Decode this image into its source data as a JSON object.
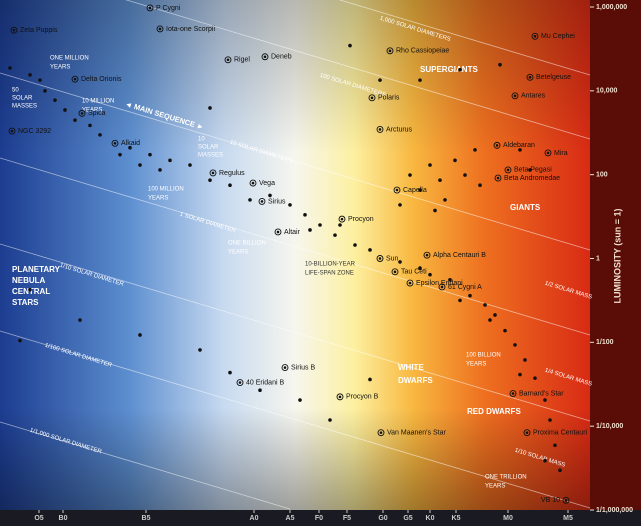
{
  "chart_data": {
    "type": "scatter",
    "ylabel": "LUMINOSITY (sun = 1)",
    "log_y": true,
    "xlim": [
      0,
      590
    ],
    "ylim": [
      1e-06,
      1000000
    ],
    "xticks": [
      {
        "value": 39,
        "label": "O5"
      },
      {
        "value": 63,
        "label": "B0"
      },
      {
        "value": 146,
        "label": "B5"
      },
      {
        "value": 254,
        "label": "A0"
      },
      {
        "value": 290,
        "label": "A5"
      },
      {
        "value": 319,
        "label": "F0"
      },
      {
        "value": 347,
        "label": "F5"
      },
      {
        "value": 383,
        "label": "G0"
      },
      {
        "value": 408,
        "label": "G5"
      },
      {
        "value": 430,
        "label": "K0"
      },
      {
        "value": 456,
        "label": "K5"
      },
      {
        "value": 508,
        "label": "M0"
      },
      {
        "value": 568,
        "label": "M5"
      }
    ],
    "yticks": [
      {
        "value": 1000000,
        "label": "1,000,000"
      },
      {
        "value": 10000,
        "label": "10,000"
      },
      100,
      1,
      {
        "value": 0.01,
        "label": "1/100"
      },
      {
        "value": 0.0001,
        "label": "1/10,000"
      },
      {
        "value": 1e-06,
        "label": "1/1,000,000"
      }
    ],
    "color": "#111111",
    "stars": {
      "labels": [
        "Zeta Puppis",
        "P Cygni",
        "Iota-one Scorpii",
        "Rigel",
        "Deneb",
        "Rho Cassiopeiae",
        "Mu Cephei",
        "Delta Orionis",
        "Betelgeuse",
        "Antares",
        "Polaris",
        "NGC 3292",
        "Spica",
        "Alkaid",
        "Regulus",
        "Vega",
        "Arcturus",
        "Aldebaran",
        "Beta Pegasi",
        "Mira",
        "Beta Andromedae",
        "Capella",
        "Sirius",
        "Procyon",
        "Altair",
        "Sun",
        "Alpha Centauri B",
        "Tau Ceti",
        "Epsilon Eridani",
        "61 Cygni A",
        "Sirius B",
        "40 Eridani B",
        "Procyon B",
        "Van Maanen's Star",
        "Barnard's Star",
        "Proxima Centauri",
        "VB 10"
      ],
      "x": [
        14,
        150,
        160,
        228,
        265,
        390,
        535,
        75,
        530,
        515,
        372,
        12,
        82,
        115,
        213,
        253,
        380,
        497,
        508,
        548,
        498,
        397,
        262,
        342,
        278,
        380,
        427,
        395,
        410,
        442,
        285,
        240,
        340,
        381,
        513,
        527,
        566
      ],
      "y": [
        280000,
        950000,
        300000,
        55000,
        65000,
        90000,
        200000,
        19000,
        21000,
        7600,
        6800,
        1100,
        2900,
        560,
        110,
        63,
        1200,
        500,
        130,
        330,
        83,
        43,
        23,
        8.7,
        4.3,
        1,
        1.2,
        0.48,
        0.26,
        0.21,
        0.0025,
        0.0011,
        0.0005,
        7e-05,
        0.0006,
        7e-05,
        1.7e-06
      ]
    },
    "points": {
      "x": [
        10,
        30,
        45,
        55,
        65,
        90,
        100,
        130,
        150,
        170,
        190,
        230,
        270,
        290,
        305,
        320,
        335,
        355,
        370,
        400,
        420,
        450,
        470,
        485,
        495,
        505,
        515,
        525,
        535,
        545,
        550,
        555,
        560,
        545,
        520,
        490,
        460,
        430,
        340,
        310,
        250,
        210,
        160,
        120,
        140,
        75,
        40,
        410,
        430,
        440,
        455,
        465,
        475,
        480,
        520,
        530,
        420,
        445,
        400,
        435,
        350,
        420,
        460,
        500,
        380,
        210,
        200,
        230,
        260,
        300,
        140,
        80,
        30,
        20,
        370,
        330
      ],
      "y": [
        35000,
        24000,
        10000,
        6000,
        3500,
        1500,
        890,
        440,
        300,
        220,
        170,
        56,
        32,
        19,
        11,
        6.3,
        3.6,
        2.1,
        1.6,
        0.83,
        0.59,
        0.31,
        0.13,
        0.078,
        0.045,
        0.019,
        0.0087,
        0.0038,
        0.0014,
        0.00042,
        0.00014,
        3.5e-05,
        8.9e-06,
        1.5e-05,
        0.0017,
        0.034,
        0.1,
        0.41,
        6.3,
        4.8,
        25,
        74,
        130,
        300,
        170,
        2000,
        18000,
        98,
        170,
        74,
        220,
        98,
        390,
        56,
        390,
        130,
        43,
        25,
        19,
        14,
        120000,
        18000,
        32000,
        42000,
        18000,
        3900,
        0.0066,
        0.0019,
        0.00072,
        0.00042,
        0.015,
        0.034,
        0.18,
        0.011,
        0.0013,
        0.00014
      ]
    },
    "annotations": [
      "1,000 SOLAR DIAMETERS",
      "100 SOLAR DIAMETERS",
      "10 SOLAR DIAMETERS",
      "1 SOLAR DIAMETER",
      "1/10 SOLAR DIAMETER",
      "1/100 SOLAR DIAMETER",
      "1/1,000 SOLAR DIAMETER",
      "◄ MAIN SEQUENCE ►",
      "SUPERGIANTS",
      "GIANTS",
      "WHITE",
      "DWARFS",
      "RED DWARFS",
      "PLANETARY",
      "NEBULA",
      "CENTRAL",
      "STARS",
      "ONE MILLION",
      "YEARS",
      "10 MILLION",
      "YEARS",
      "100 MILLION",
      "YEARS",
      "ONE BILLION",
      "YEARS",
      "10-BILLION-YEAR",
      "LIFE-SPAN ZONE",
      "100 BILLION",
      "YEARS",
      "ONE TRILLION",
      "YEARS",
      "50",
      "SOLAR",
      "MASSES",
      "10",
      "SOLAR",
      "MASSES",
      "1/2 SOLAR MASS",
      "1/4 SOLAR MASS",
      "1/10 SOLAR MASS"
    ]
  }
}
